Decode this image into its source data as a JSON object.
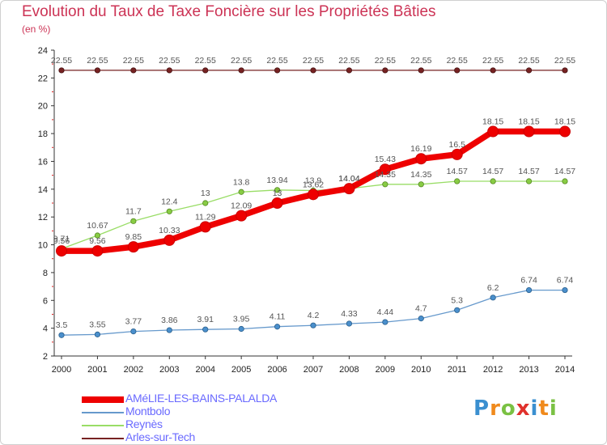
{
  "header": {
    "title": "Evolution du Taux de Taxe Foncière sur les Propriétés Bâties",
    "subtitle": "(en %)"
  },
  "logo": {
    "text": "Proxiti"
  },
  "chart_data": {
    "type": "line",
    "title": "Evolution du Taux de Taxe Foncière sur les Propriétés Bâties",
    "ylabel": "(en %)",
    "xlabel": "",
    "x": [
      "2000",
      "2001",
      "2002",
      "2003",
      "2004",
      "2005",
      "2006",
      "2007",
      "2008",
      "2009",
      "2010",
      "2011",
      "2012",
      "2013",
      "2014"
    ],
    "ylim": [
      2,
      24
    ],
    "yticks": [
      2,
      4,
      6,
      8,
      10,
      12,
      14,
      16,
      18,
      20,
      22,
      24
    ],
    "grid": false,
    "legend_position": "bottom-left",
    "series": [
      {
        "name": "AMéLIE-LES-BAINS-PALALDA",
        "color": "#ee0000",
        "values": [
          9.56,
          9.56,
          9.85,
          10.33,
          11.29,
          12.09,
          13,
          13.62,
          14.04,
          15.43,
          16.19,
          16.5,
          18.15,
          18.15,
          18.15
        ]
      },
      {
        "name": "Montbolo",
        "color": "#6699cc",
        "values": [
          3.5,
          3.55,
          3.77,
          3.86,
          3.91,
          3.95,
          4.11,
          4.2,
          4.33,
          4.44,
          4.7,
          5.3,
          6.2,
          6.74,
          6.74
        ]
      },
      {
        "name": "Reynès",
        "color": "#99dd66",
        "values": [
          9.71,
          10.67,
          11.7,
          12.4,
          13,
          13.8,
          13.94,
          13.9,
          14.04,
          14.35,
          14.35,
          14.57,
          14.57,
          14.57,
          14.57
        ]
      },
      {
        "name": "Arles-sur-Tech",
        "color": "#772222",
        "values": [
          22.55,
          22.55,
          22.55,
          22.55,
          22.55,
          22.55,
          22.55,
          22.55,
          22.55,
          22.55,
          22.55,
          22.55,
          22.55,
          22.55,
          22.55
        ]
      }
    ],
    "data_labels": [
      [
        "9.56",
        "9.56",
        "9.85",
        "10.33",
        "11.29",
        "12.09",
        "13",
        "13.62",
        "14.04",
        "15.43",
        "16.19",
        "16.5",
        "18.15",
        "18.15",
        "18.15"
      ],
      [
        "3.5",
        "3.55",
        "3.77",
        "3.86",
        "3.91",
        "3.95",
        "4.11",
        "4.2",
        "4.33",
        "4.44",
        "4.7",
        "5.3",
        "6.2",
        "6.74",
        "6.74"
      ],
      [
        "9.71",
        "10.67",
        "11.7",
        "12.4",
        "13",
        "13.8",
        "13.94",
        "13.9",
        "14.04",
        "14.35",
        "14.35",
        "14.57",
        "14.57",
        "14.57",
        "14.57"
      ],
      [
        "22.55",
        "22.55",
        "22.55",
        "22.55",
        "22.55",
        "22.55",
        "22.55",
        "22.55",
        "22.55",
        "22.55",
        "22.55",
        "22.55",
        "22.55",
        "22.55",
        "22.55"
      ]
    ]
  }
}
